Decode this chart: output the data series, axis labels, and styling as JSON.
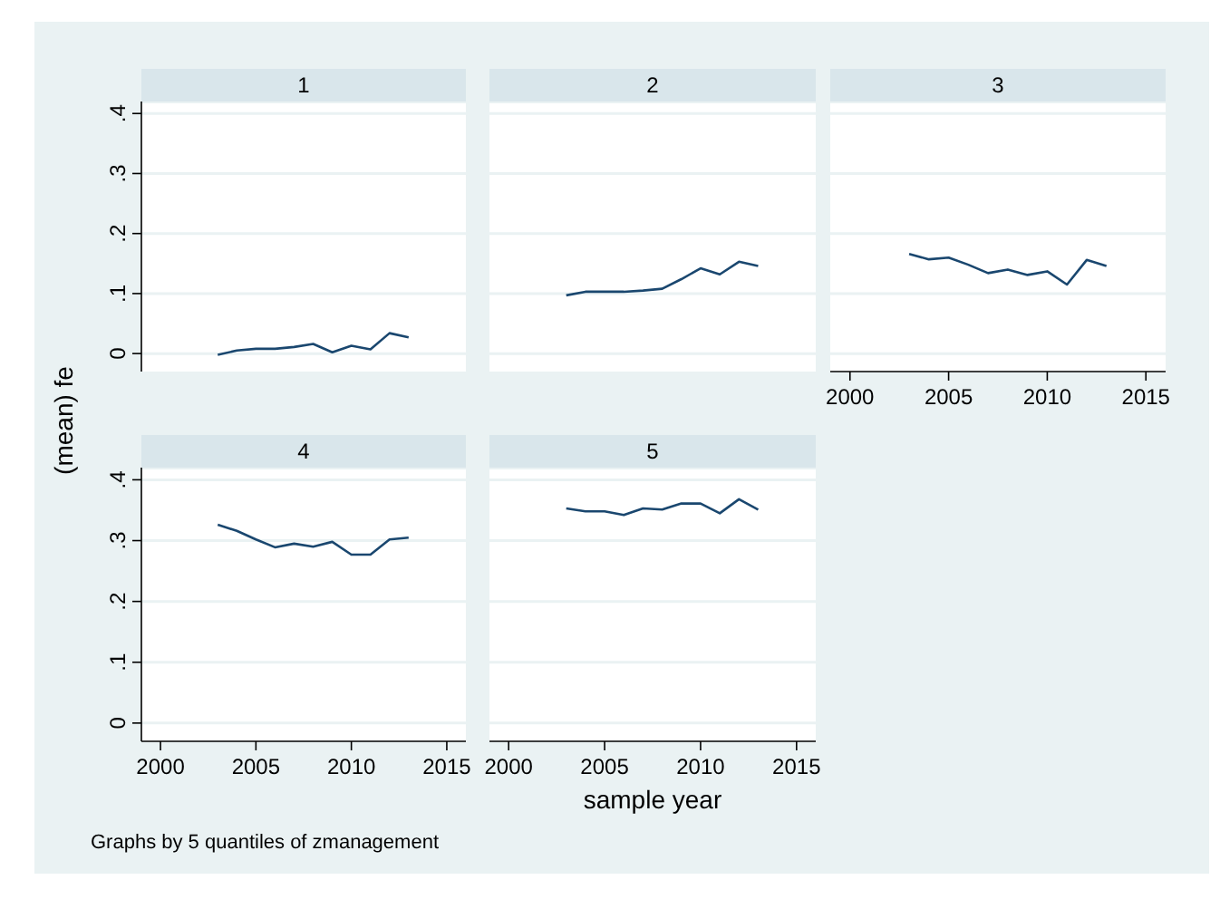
{
  "chart_data": [
    {
      "type": "line",
      "title": "1",
      "x": [
        2003,
        2004,
        2005,
        2006,
        2007,
        2008,
        2009,
        2010,
        2011,
        2012,
        2013
      ],
      "series": [
        {
          "color": "#1a476f",
          "values": [
            -0.002,
            0.005,
            0.008,
            0.008,
            0.011,
            0.016,
            0.002,
            0.013,
            0.007,
            0.034,
            0.027
          ]
        }
      ],
      "xlim": [
        1999,
        2016
      ],
      "ylim": [
        -0.03,
        0.42
      ],
      "yticks": [
        0,
        {
          "value": 0.1,
          "label": ".1"
        },
        {
          "value": 0.2,
          "label": ".2"
        },
        {
          "value": 0.3,
          "label": ".3"
        },
        {
          "value": 0.4,
          "label": ".4"
        }
      ],
      "grid": "y",
      "tick_labels": "y"
    },
    {
      "type": "line",
      "title": "2",
      "x": [
        2003,
        2004,
        2005,
        2006,
        2007,
        2008,
        2009,
        2010,
        2011,
        2012,
        2013
      ],
      "series": [
        {
          "color": "#1a476f",
          "values": [
            0.097,
            0.103,
            0.103,
            0.103,
            0.105,
            0.108,
            0.124,
            0.142,
            0.132,
            0.153,
            0.146
          ]
        }
      ],
      "xlim": [
        1999,
        2016
      ],
      "ylim": [
        -0.03,
        0.42
      ],
      "yticks": [
        0,
        0.1,
        0.2,
        0.3,
        0.4
      ],
      "grid": "y",
      "tick_labels": false
    },
    {
      "type": "line",
      "title": "3",
      "x": [
        2003,
        2004,
        2005,
        2006,
        2007,
        2008,
        2009,
        2010,
        2011,
        2012,
        2013
      ],
      "series": [
        {
          "color": "#1a476f",
          "values": [
            0.166,
            0.157,
            0.16,
            0.148,
            0.134,
            0.14,
            0.131,
            0.137,
            0.115,
            0.156,
            0.146
          ]
        }
      ],
      "xlim": [
        1999,
        2016
      ],
      "ylim": [
        -0.03,
        0.42
      ],
      "xticks": [
        2000,
        2005,
        2010,
        2015
      ],
      "yticks": [
        0,
        0.1,
        0.2,
        0.3,
        0.4
      ],
      "grid": "y",
      "tick_labels": "x"
    },
    {
      "type": "line",
      "title": "4",
      "ylabel": "(mean) fe",
      "annotations": [
        "Graphs by 5 quantiles of zmanagement"
      ],
      "x": [
        2003,
        2004,
        2005,
        2006,
        2007,
        2008,
        2009,
        2010,
        2011,
        2012,
        2013
      ],
      "series": [
        {
          "color": "#1a476f",
          "values": [
            0.326,
            0.316,
            0.302,
            0.289,
            0.295,
            0.29,
            0.298,
            0.277,
            0.277,
            0.302,
            0.305
          ]
        }
      ],
      "xlim": [
        1999,
        2016
      ],
      "ylim": [
        -0.03,
        0.42
      ],
      "xticks": [
        2000,
        2005,
        2010,
        2015
      ],
      "yticks": [
        0,
        {
          "value": 0.1,
          "label": ".1"
        },
        {
          "value": 0.2,
          "label": ".2"
        },
        {
          "value": 0.3,
          "label": ".3"
        },
        {
          "value": 0.4,
          "label": ".4"
        }
      ],
      "grid": "y"
    },
    {
      "type": "line",
      "title": "5",
      "xlabel": "sample year",
      "x": [
        2003,
        2004,
        2005,
        2006,
        2007,
        2008,
        2009,
        2010,
        2011,
        2012,
        2013
      ],
      "series": [
        {
          "color": "#1a476f",
          "values": [
            0.353,
            0.348,
            0.348,
            0.342,
            0.353,
            0.351,
            0.361,
            0.361,
            0.345,
            0.368,
            0.351
          ]
        }
      ],
      "xlim": [
        1999,
        2016
      ],
      "ylim": [
        -0.03,
        0.42
      ],
      "xticks": [
        2000,
        2005,
        2010,
        2015
      ],
      "yticks": [
        0,
        0.1,
        0.2,
        0.3,
        0.4
      ],
      "grid": "y",
      "tick_labels": "x"
    }
  ]
}
